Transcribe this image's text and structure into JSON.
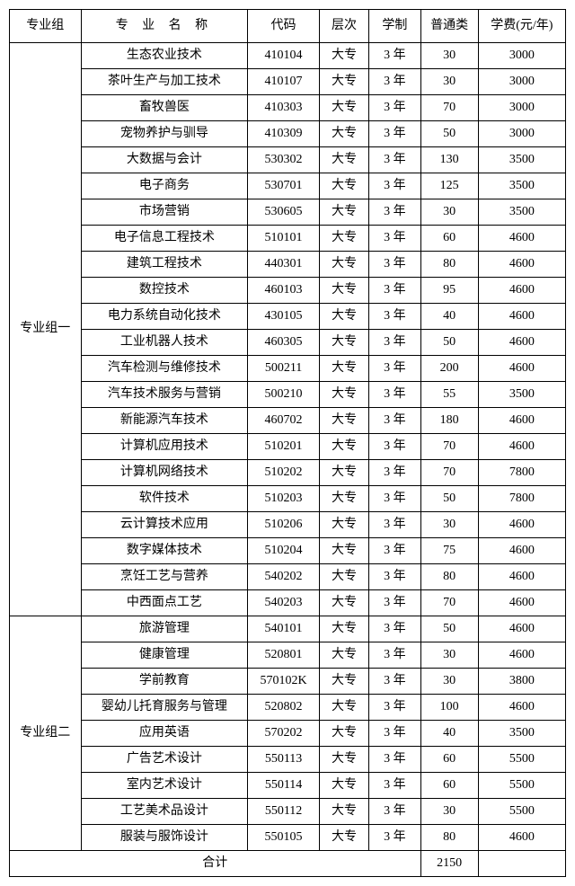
{
  "headers": {
    "group": "专业组",
    "name": "专 业 名 称",
    "code": "代码",
    "level": "层次",
    "duration": "学制",
    "quota": "普通类",
    "fee": "学费(元/年)"
  },
  "groups": [
    {
      "label": "专业组一",
      "rows": [
        {
          "name": "生态农业技术",
          "code": "410104",
          "level": "大专",
          "dur": "3 年",
          "quota": "30",
          "fee": "3000"
        },
        {
          "name": "茶叶生产与加工技术",
          "code": "410107",
          "level": "大专",
          "dur": "3 年",
          "quota": "30",
          "fee": "3000"
        },
        {
          "name": "畜牧兽医",
          "code": "410303",
          "level": "大专",
          "dur": "3 年",
          "quota": "70",
          "fee": "3000"
        },
        {
          "name": "宠物养护与驯导",
          "code": "410309",
          "level": "大专",
          "dur": "3 年",
          "quota": "50",
          "fee": "3000"
        },
        {
          "name": "大数据与会计",
          "code": "530302",
          "level": "大专",
          "dur": "3 年",
          "quota": "130",
          "fee": "3500"
        },
        {
          "name": "电子商务",
          "code": "530701",
          "level": "大专",
          "dur": "3 年",
          "quota": "125",
          "fee": "3500"
        },
        {
          "name": "市场营销",
          "code": "530605",
          "level": "大专",
          "dur": "3 年",
          "quota": "30",
          "fee": "3500"
        },
        {
          "name": "电子信息工程技术",
          "code": "510101",
          "level": "大专",
          "dur": "3 年",
          "quota": "60",
          "fee": "4600"
        },
        {
          "name": "建筑工程技术",
          "code": "440301",
          "level": "大专",
          "dur": "3 年",
          "quota": "80",
          "fee": "4600"
        },
        {
          "name": "数控技术",
          "code": "460103",
          "level": "大专",
          "dur": "3 年",
          "quota": "95",
          "fee": "4600"
        },
        {
          "name": "电力系统自动化技术",
          "code": "430105",
          "level": "大专",
          "dur": "3 年",
          "quota": "40",
          "fee": "4600"
        },
        {
          "name": "工业机器人技术",
          "code": "460305",
          "level": "大专",
          "dur": "3 年",
          "quota": "50",
          "fee": "4600"
        },
        {
          "name": "汽车检测与维修技术",
          "code": "500211",
          "level": "大专",
          "dur": "3 年",
          "quota": "200",
          "fee": "4600"
        },
        {
          "name": "汽车技术服务与营销",
          "code": "500210",
          "level": "大专",
          "dur": "3 年",
          "quota": "55",
          "fee": "3500"
        },
        {
          "name": "新能源汽车技术",
          "code": "460702",
          "level": "大专",
          "dur": "3 年",
          "quota": "180",
          "fee": "4600"
        },
        {
          "name": "计算机应用技术",
          "code": "510201",
          "level": "大专",
          "dur": "3 年",
          "quota": "70",
          "fee": "4600"
        },
        {
          "name": "计算机网络技术",
          "code": "510202",
          "level": "大专",
          "dur": "3 年",
          "quota": "70",
          "fee": "7800"
        },
        {
          "name": "软件技术",
          "code": "510203",
          "level": "大专",
          "dur": "3 年",
          "quota": "50",
          "fee": "7800"
        },
        {
          "name": "云计算技术应用",
          "code": "510206",
          "level": "大专",
          "dur": "3 年",
          "quota": "30",
          "fee": "4600"
        },
        {
          "name": "数字媒体技术",
          "code": "510204",
          "level": "大专",
          "dur": "3 年",
          "quota": "75",
          "fee": "4600"
        },
        {
          "name": "烹饪工艺与营养",
          "code": "540202",
          "level": "大专",
          "dur": "3 年",
          "quota": "80",
          "fee": "4600"
        },
        {
          "name": "中西面点工艺",
          "code": "540203",
          "level": "大专",
          "dur": "3 年",
          "quota": "70",
          "fee": "4600"
        }
      ]
    },
    {
      "label": "专业组二",
      "rows": [
        {
          "name": "旅游管理",
          "code": "540101",
          "level": "大专",
          "dur": "3 年",
          "quota": "50",
          "fee": "4600"
        },
        {
          "name": "健康管理",
          "code": "520801",
          "level": "大专",
          "dur": "3 年",
          "quota": "30",
          "fee": "4600"
        },
        {
          "name": "学前教育",
          "code": "570102K",
          "level": "大专",
          "dur": "3 年",
          "quota": "30",
          "fee": "3800"
        },
        {
          "name": "婴幼儿托育服务与管理",
          "code": "520802",
          "level": "大专",
          "dur": "3 年",
          "quota": "100",
          "fee": "4600"
        },
        {
          "name": "应用英语",
          "code": "570202",
          "level": "大专",
          "dur": "3 年",
          "quota": "40",
          "fee": "3500"
        },
        {
          "name": "广告艺术设计",
          "code": "550113",
          "level": "大专",
          "dur": "3 年",
          "quota": "60",
          "fee": "5500"
        },
        {
          "name": "室内艺术设计",
          "code": "550114",
          "level": "大专",
          "dur": "3 年",
          "quota": "60",
          "fee": "5500"
        },
        {
          "name": "工艺美术品设计",
          "code": "550112",
          "level": "大专",
          "dur": "3 年",
          "quota": "30",
          "fee": "5500"
        },
        {
          "name": "服装与服饰设计",
          "code": "550105",
          "level": "大专",
          "dur": "3 年",
          "quota": "80",
          "fee": "4600"
        }
      ]
    }
  ],
  "total": {
    "label": "合计",
    "value": "2150"
  }
}
